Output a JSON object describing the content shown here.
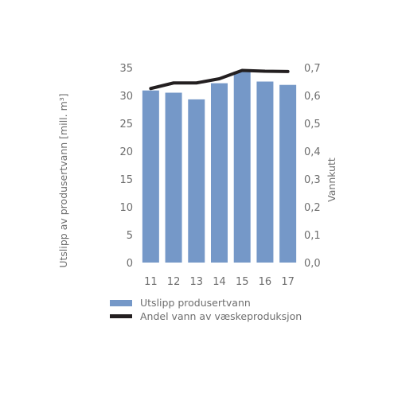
{
  "chart_data": {
    "type": "bar",
    "categories": [
      "11",
      "12",
      "13",
      "14",
      "15",
      "16",
      "17"
    ],
    "series": [
      {
        "name": "Utslipp produsertvann",
        "type": "bar",
        "axis": "left",
        "color": "#7598c8",
        "values": [
          30.9,
          30.5,
          29.3,
          32.2,
          34.3,
          32.5,
          31.9
        ]
      },
      {
        "name": "Andel vann av væskeproduksjon",
        "type": "line",
        "axis": "right",
        "color": "#231f20",
        "values": [
          0.625,
          0.645,
          0.645,
          0.66,
          0.69,
          0.687,
          0.686
        ]
      }
    ],
    "ylabel": "Utslipp av produsertvann [mill. m³]",
    "y2label": "Vannkutt",
    "ylim": [
      0,
      35
    ],
    "y2lim": [
      0,
      0.7
    ],
    "yticks": [
      "0",
      "5",
      "10",
      "15",
      "20",
      "25",
      "30",
      "35"
    ],
    "y2ticks": [
      "0,0",
      "0,1",
      "0,2",
      "0,3",
      "0,4",
      "0,5",
      "0,6",
      "0,7"
    ],
    "grid": false,
    "legend_position": "bottom-left"
  }
}
